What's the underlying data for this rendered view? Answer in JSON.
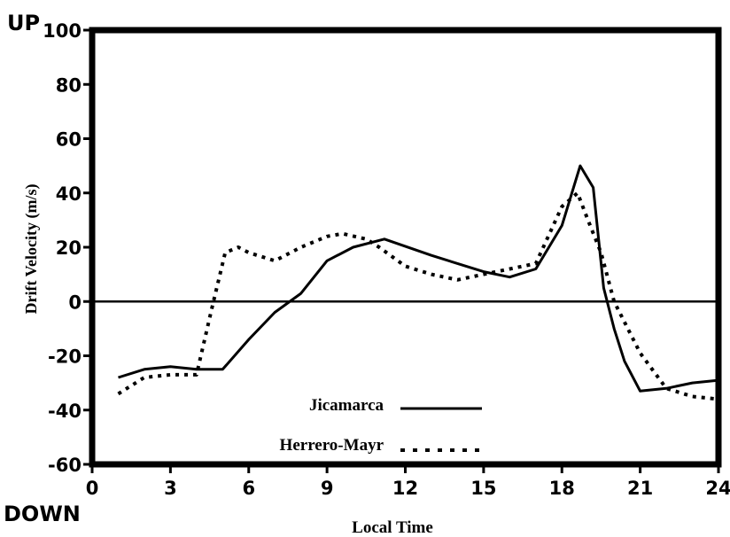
{
  "labels": {
    "up": "UP",
    "down": "DOWN"
  },
  "chart_data": {
    "type": "line",
    "xlabel": "Local Time",
    "ylabel": "Drift Velocity (m/s)",
    "xlim": [
      0,
      24
    ],
    "ylim": [
      -60,
      100
    ],
    "xticks": [
      0,
      3,
      6,
      9,
      12,
      15,
      18,
      21,
      24
    ],
    "yticks": [
      -60,
      -40,
      -20,
      0,
      20,
      40,
      60,
      80,
      100
    ],
    "zero_line": true,
    "grid": false,
    "legend_position": "bottom-center",
    "series": [
      {
        "name": "Jicamarca",
        "style": "solid",
        "color": "#000000",
        "x": [
          1.0,
          2.0,
          3.0,
          4.0,
          5.0,
          6.0,
          7.0,
          8.0,
          9.0,
          10.0,
          11.2,
          13.0,
          15.0,
          16.0,
          17.0,
          18.0,
          18.7,
          19.2,
          19.6,
          20.0,
          20.4,
          21.0,
          22.0,
          23.0,
          24.0
        ],
        "y": [
          -28,
          -25,
          -24,
          -25,
          -25,
          -14,
          -4,
          3,
          15,
          20,
          23,
          17,
          11,
          9,
          12,
          28,
          50,
          42,
          5,
          -10,
          -22,
          -33,
          -32,
          -30,
          -29
        ]
      },
      {
        "name": "Herrero-Mayr",
        "style": "dotted",
        "color": "#000000",
        "x": [
          1.0,
          2.0,
          3.0,
          4.0,
          4.6,
          5.1,
          5.6,
          6.0,
          7.0,
          8.0,
          9.0,
          9.6,
          10.5,
          11.0,
          12.0,
          13.0,
          14.0,
          15.0,
          16.0,
          17.0,
          18.0,
          18.6,
          19.0,
          19.5,
          20.0,
          21.0,
          22.0,
          23.0,
          24.0
        ],
        "y": [
          -34,
          -28,
          -27,
          -27,
          -2,
          18,
          20,
          18,
          15,
          20,
          24,
          25,
          23,
          20,
          13,
          10,
          8,
          10,
          12,
          14,
          35,
          40,
          30,
          18,
          0,
          -19,
          -32,
          -35,
          -36
        ]
      }
    ]
  }
}
